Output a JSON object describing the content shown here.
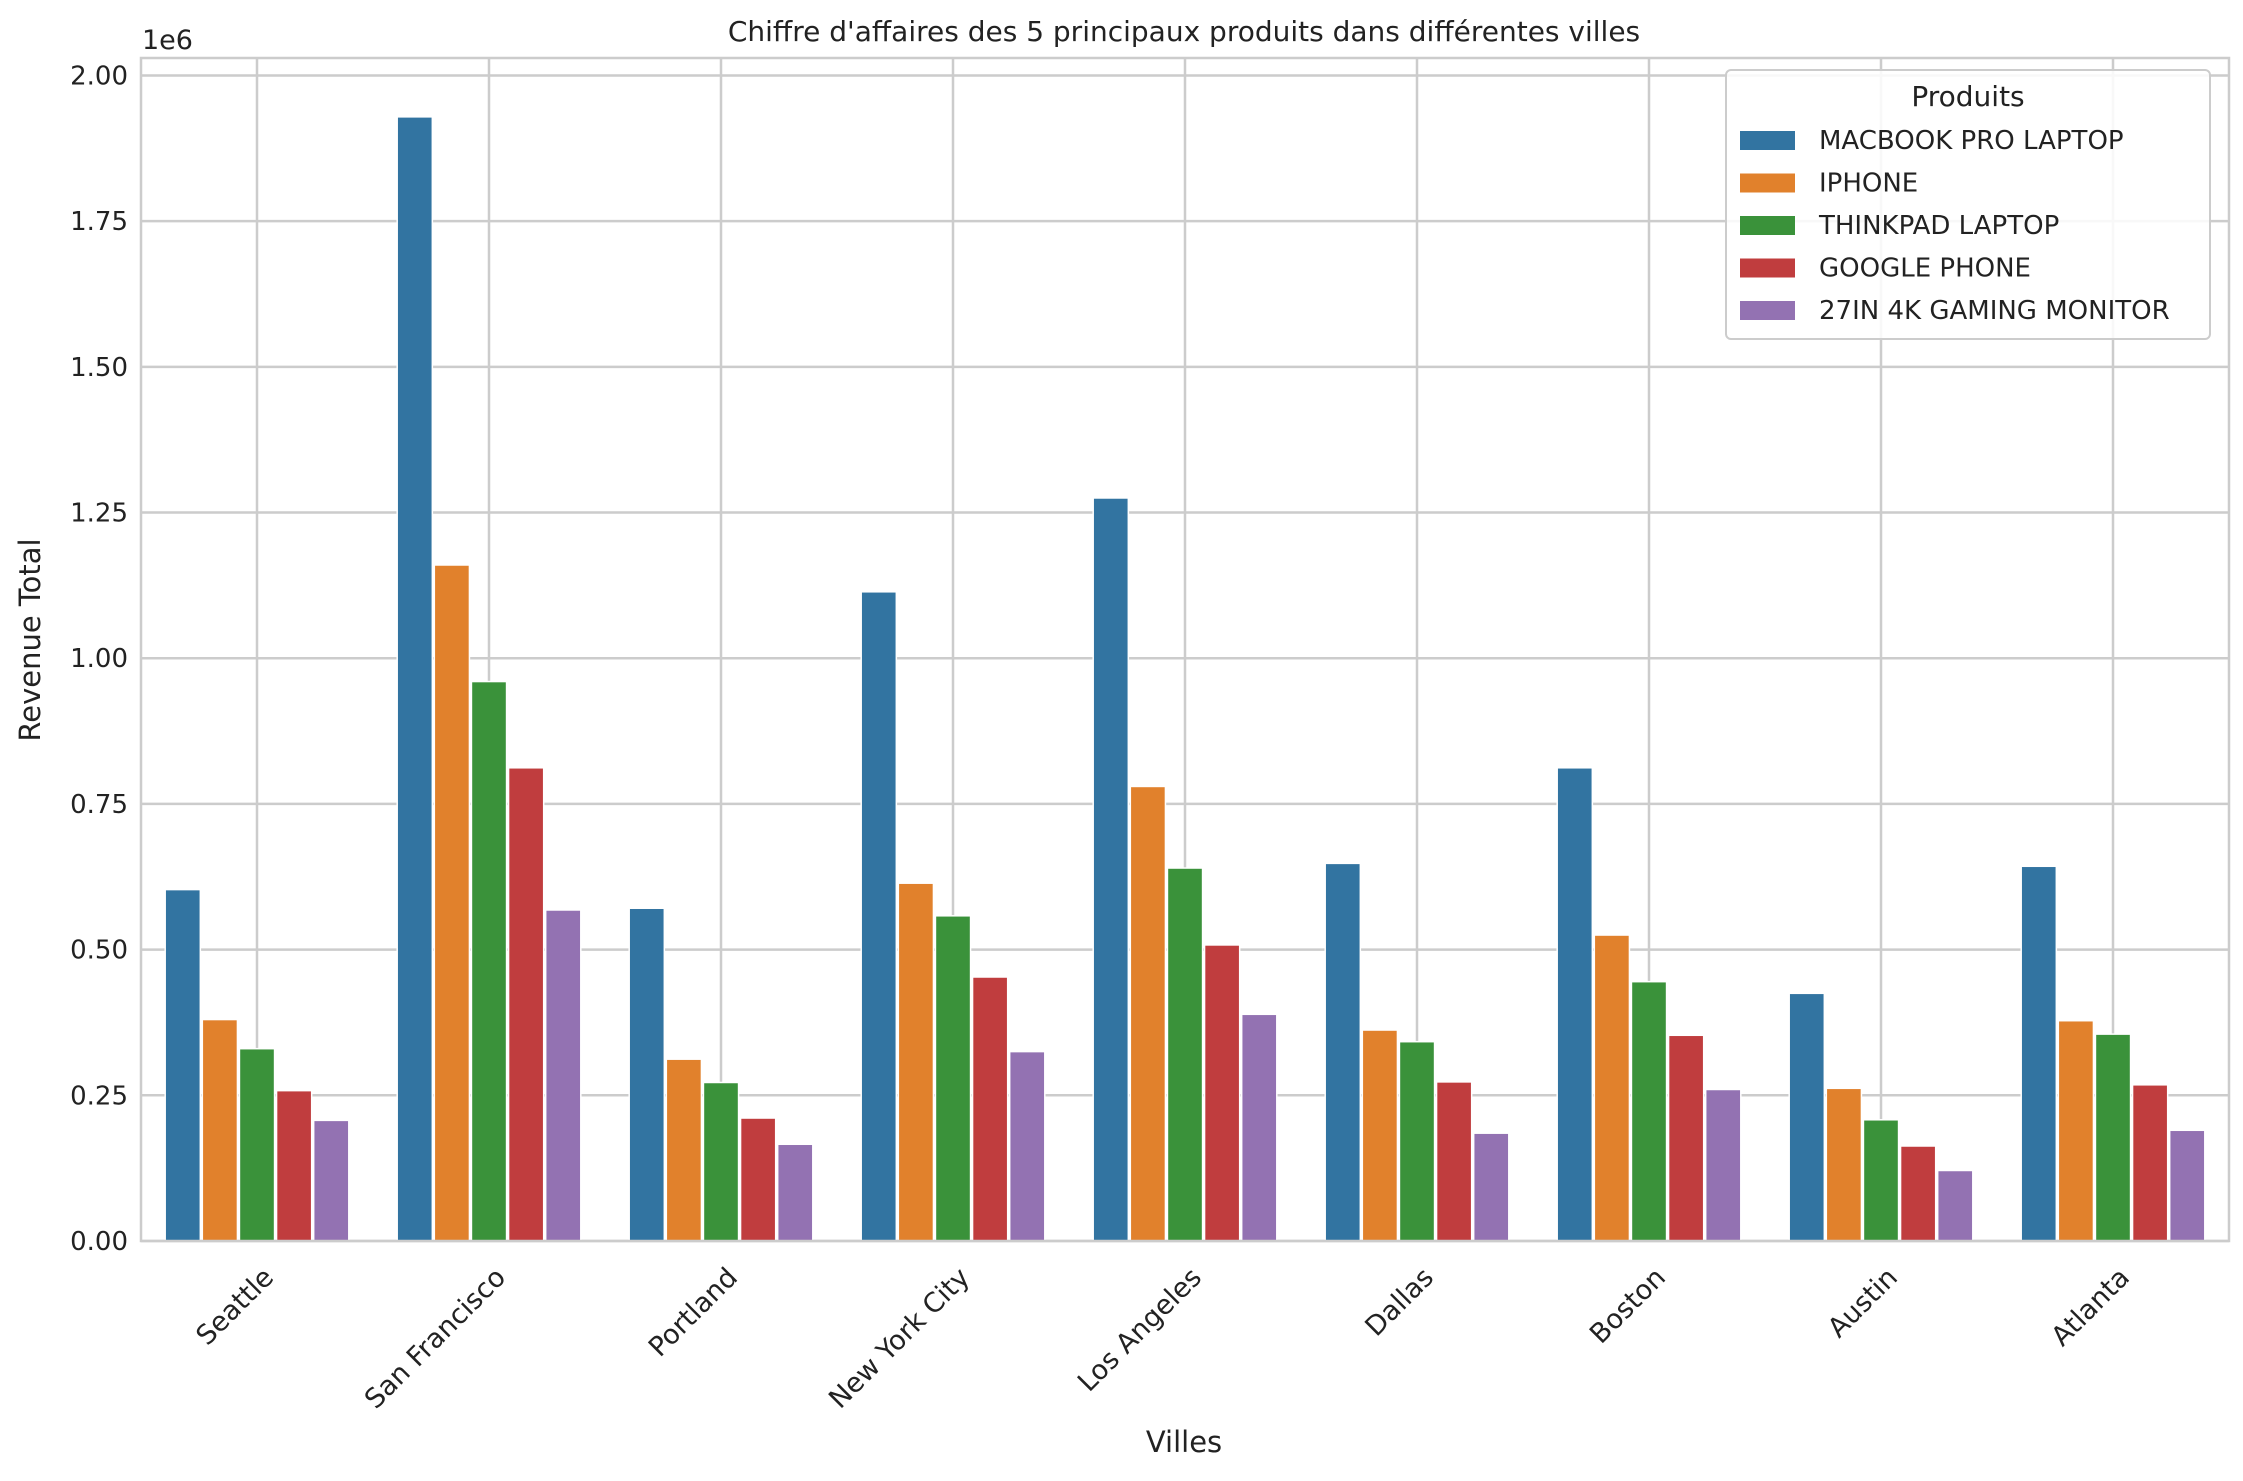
{
  "chart_data": {
    "type": "bar",
    "title": "Chiffre d'affaires des 5 principaux produits dans différentes villes",
    "xlabel": "Villes",
    "ylabel": "Revenue Total",
    "y_multiplier_label": "1e6",
    "ylim": [
      0,
      2.03
    ],
    "yticks": [
      "0.00",
      "0.25",
      "0.50",
      "0.75",
      "1.00",
      "1.25",
      "1.50",
      "1.75",
      "2.00"
    ],
    "ytick_values": [
      0,
      0.25,
      0.5,
      0.75,
      1.0,
      1.25,
      1.5,
      1.75,
      2.0
    ],
    "grid": true,
    "legend_title": "Produits",
    "legend_position": "top-right",
    "categories": [
      "Seattle",
      "San Francisco",
      "Portland",
      "New York City",
      "Los Angeles",
      "Dallas",
      "Boston",
      "Austin",
      "Atlanta"
    ],
    "series": [
      {
        "name": "MACBOOK PRO LAPTOP",
        "color": "#3274a1",
        "values": [
          0.603,
          1.929,
          0.571,
          1.114,
          1.275,
          0.648,
          0.812,
          0.425,
          0.643
        ]
      },
      {
        "name": "IPHONE",
        "color": "#e1812c",
        "values": [
          0.38,
          1.16,
          0.312,
          0.614,
          0.78,
          0.362,
          0.525,
          0.262,
          0.378
        ]
      },
      {
        "name": "THINKPAD LAPTOP",
        "color": "#3a923a",
        "values": [
          0.33,
          0.96,
          0.272,
          0.558,
          0.64,
          0.342,
          0.445,
          0.208,
          0.355
        ]
      },
      {
        "name": "GOOGLE PHONE",
        "color": "#c03d3e",
        "values": [
          0.258,
          0.812,
          0.211,
          0.453,
          0.508,
          0.273,
          0.353,
          0.163,
          0.268
        ]
      },
      {
        "name": "27IN 4K GAMING MONITOR",
        "color": "#9372b2",
        "values": [
          0.207,
          0.568,
          0.166,
          0.325,
          0.389,
          0.185,
          0.26,
          0.121,
          0.19
        ]
      }
    ]
  }
}
